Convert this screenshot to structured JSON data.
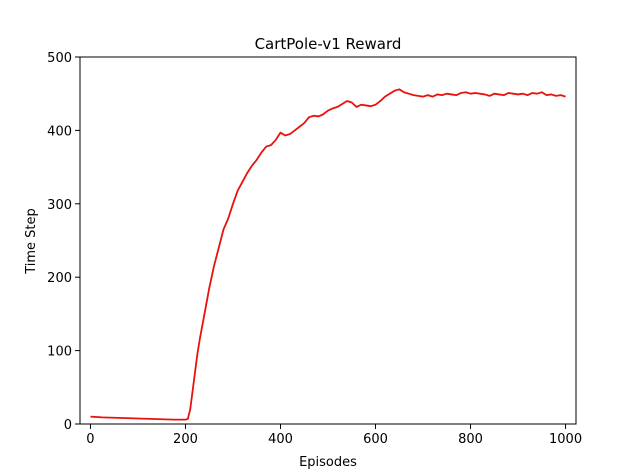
{
  "chart_data": {
    "type": "line",
    "title": "CartPole-v1 Reward",
    "xlabel": "Episodes",
    "ylabel": "Time Step",
    "xlim": [
      -22,
      1022
    ],
    "ylim": [
      0,
      500
    ],
    "x_ticks": [
      0,
      200,
      400,
      600,
      800,
      1000
    ],
    "y_ticks": [
      0,
      100,
      200,
      300,
      400,
      500
    ],
    "grid": false,
    "legend": "none",
    "series": [
      {
        "color": "#e8120c",
        "x": [
          0,
          25,
          50,
          75,
          100,
          125,
          150,
          175,
          200,
          205,
          210,
          215,
          220,
          225,
          230,
          240,
          250,
          260,
          270,
          280,
          290,
          300,
          310,
          320,
          330,
          340,
          350,
          360,
          370,
          380,
          390,
          400,
          410,
          420,
          430,
          440,
          450,
          460,
          470,
          480,
          490,
          500,
          510,
          520,
          530,
          540,
          550,
          560,
          570,
          580,
          590,
          600,
          610,
          620,
          630,
          640,
          650,
          660,
          670,
          680,
          690,
          700,
          710,
          720,
          730,
          740,
          750,
          760,
          770,
          780,
          790,
          800,
          810,
          820,
          830,
          840,
          850,
          860,
          870,
          880,
          890,
          900,
          910,
          920,
          930,
          940,
          950,
          960,
          970,
          980,
          990,
          1000
        ],
        "y": [
          10,
          9,
          8.5,
          8,
          7.5,
          7,
          6.5,
          6,
          6,
          7,
          20,
          45,
          70,
          95,
          115,
          150,
          185,
          215,
          240,
          265,
          280,
          300,
          318,
          330,
          342,
          352,
          360,
          370,
          378,
          380,
          387,
          397,
          393,
          395,
          400,
          405,
          410,
          418,
          420,
          419,
          422,
          427,
          430,
          432,
          436,
          440,
          438,
          432,
          435,
          434,
          433,
          435,
          440,
          446,
          450,
          454,
          456,
          452,
          450,
          448,
          447,
          446,
          448,
          446,
          449,
          448,
          450,
          449,
          448,
          451,
          452,
          450,
          451,
          450,
          449,
          447,
          450,
          449,
          448,
          451,
          450,
          449,
          450,
          448,
          451,
          450,
          452,
          448,
          449,
          447,
          448,
          446
        ]
      }
    ]
  }
}
